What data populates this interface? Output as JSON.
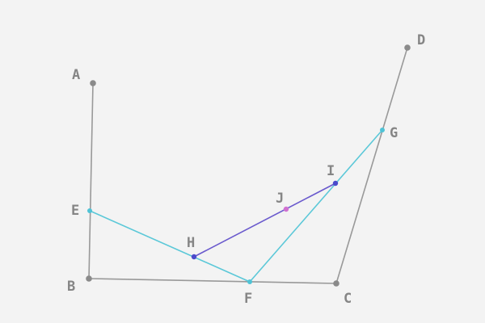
{
  "colors": {
    "background": "#f3f3f3",
    "frame_line": "#999999",
    "frame_point": "#8a8a8a",
    "cyan_line": "#5bc8d8",
    "cyan_point": "#4fc3d6",
    "blue_line": "#6a5acd",
    "blue_point": "#4a4acb",
    "pink_point": "#d070d0",
    "label": "#858585"
  },
  "diagram": {
    "points": [
      {
        "id": "A",
        "label": "A"
      },
      {
        "id": "B",
        "label": "B"
      },
      {
        "id": "C",
        "label": "C"
      },
      {
        "id": "D",
        "label": "D"
      },
      {
        "id": "E",
        "label": "E"
      },
      {
        "id": "F",
        "label": "F"
      },
      {
        "id": "G",
        "label": "G"
      },
      {
        "id": "H",
        "label": "H"
      },
      {
        "id": "I",
        "label": "I"
      },
      {
        "id": "J",
        "label": "J"
      }
    ],
    "segments": [
      {
        "from": "A",
        "to": "B",
        "style": "frame"
      },
      {
        "from": "B",
        "to": "C",
        "style": "frame"
      },
      {
        "from": "C",
        "to": "D",
        "style": "frame"
      },
      {
        "from": "E",
        "to": "F",
        "style": "cyan"
      },
      {
        "from": "F",
        "to": "G",
        "style": "cyan"
      },
      {
        "from": "H",
        "to": "I",
        "style": "blue"
      }
    ]
  }
}
